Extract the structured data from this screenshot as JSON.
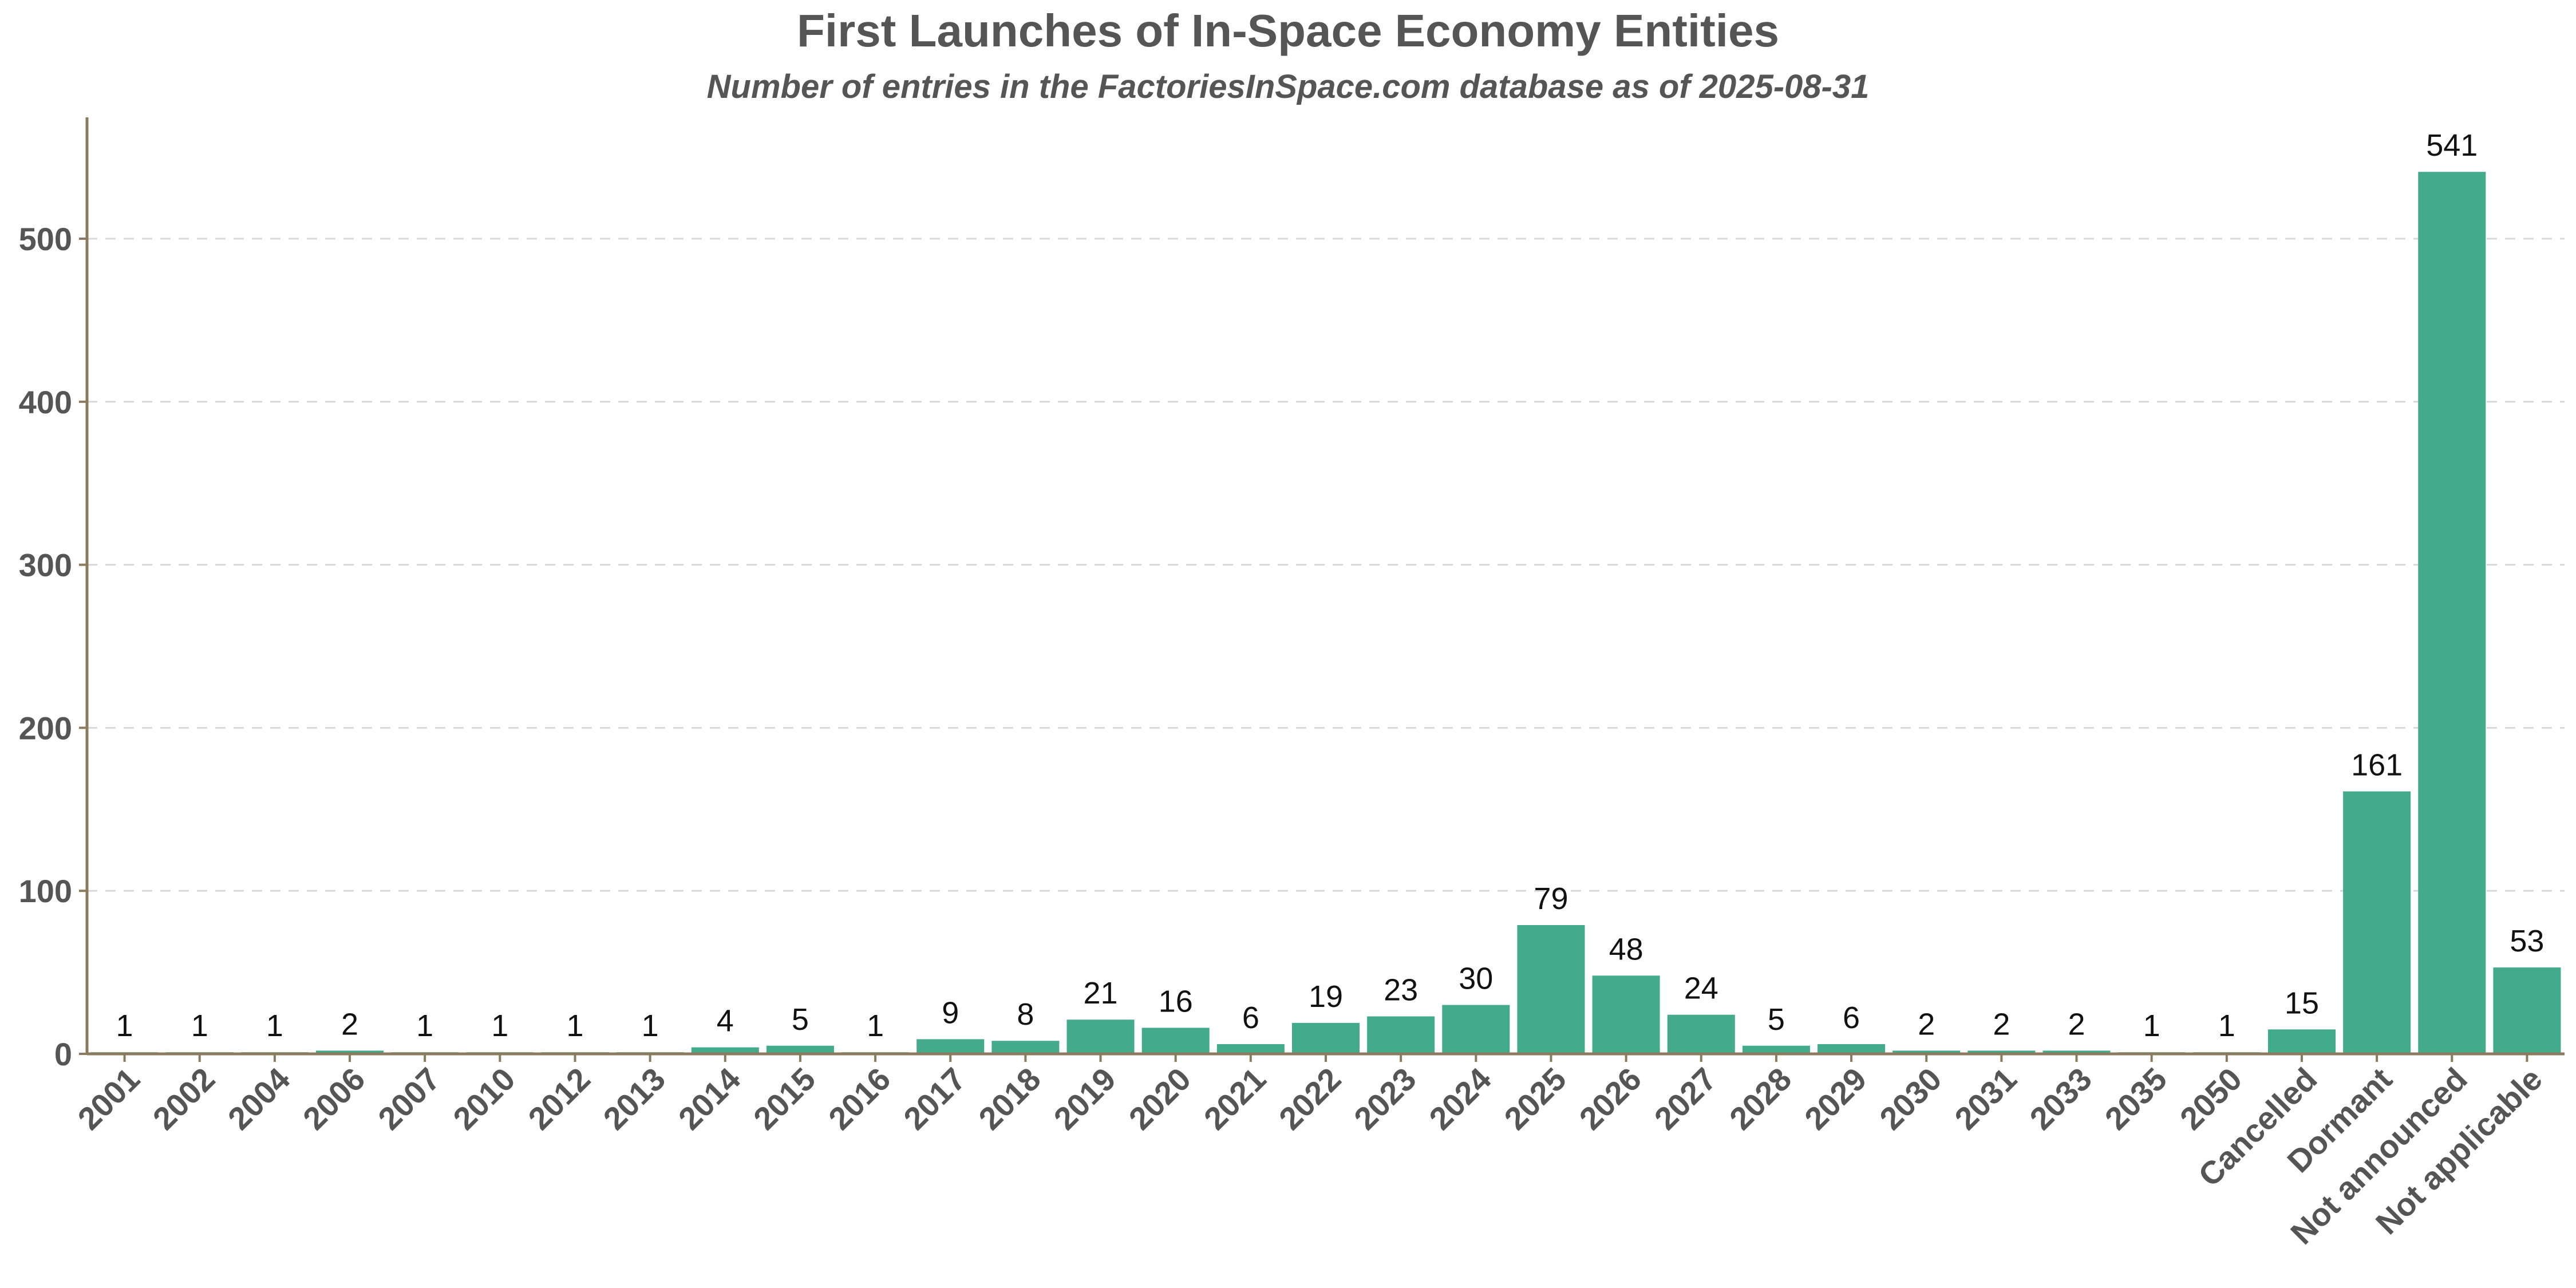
{
  "chart_data": {
    "type": "bar",
    "title": "First Launches of In-Space Economy Entities",
    "subtitle": "Number of entries in the FactoriesInSpace.com database as of 2025-08-31",
    "xlabel": "",
    "ylabel": "",
    "ylim": [
      0,
      575
    ],
    "yticks": [
      "0",
      "100",
      "200",
      "300",
      "400",
      "500"
    ],
    "grid": "y-dashed",
    "bar_color": "#43aa8b",
    "axis_color": "#8b7b5e",
    "categories": [
      "2001",
      "2002",
      "2004",
      "2006",
      "2007",
      "2010",
      "2012",
      "2013",
      "2014",
      "2015",
      "2016",
      "2017",
      "2018",
      "2019",
      "2020",
      "2021",
      "2022",
      "2023",
      "2024",
      "2025",
      "2026",
      "2027",
      "2028",
      "2029",
      "2030",
      "2031",
      "2033",
      "2035",
      "2050",
      "Cancelled",
      "Dormant",
      "Not announced",
      "Not applicable"
    ],
    "values": [
      1,
      1,
      1,
      2,
      1,
      1,
      1,
      1,
      4,
      5,
      1,
      9,
      8,
      21,
      16,
      6,
      19,
      23,
      30,
      79,
      48,
      24,
      5,
      6,
      2,
      2,
      2,
      1,
      1,
      15,
      161,
      541,
      53
    ]
  }
}
